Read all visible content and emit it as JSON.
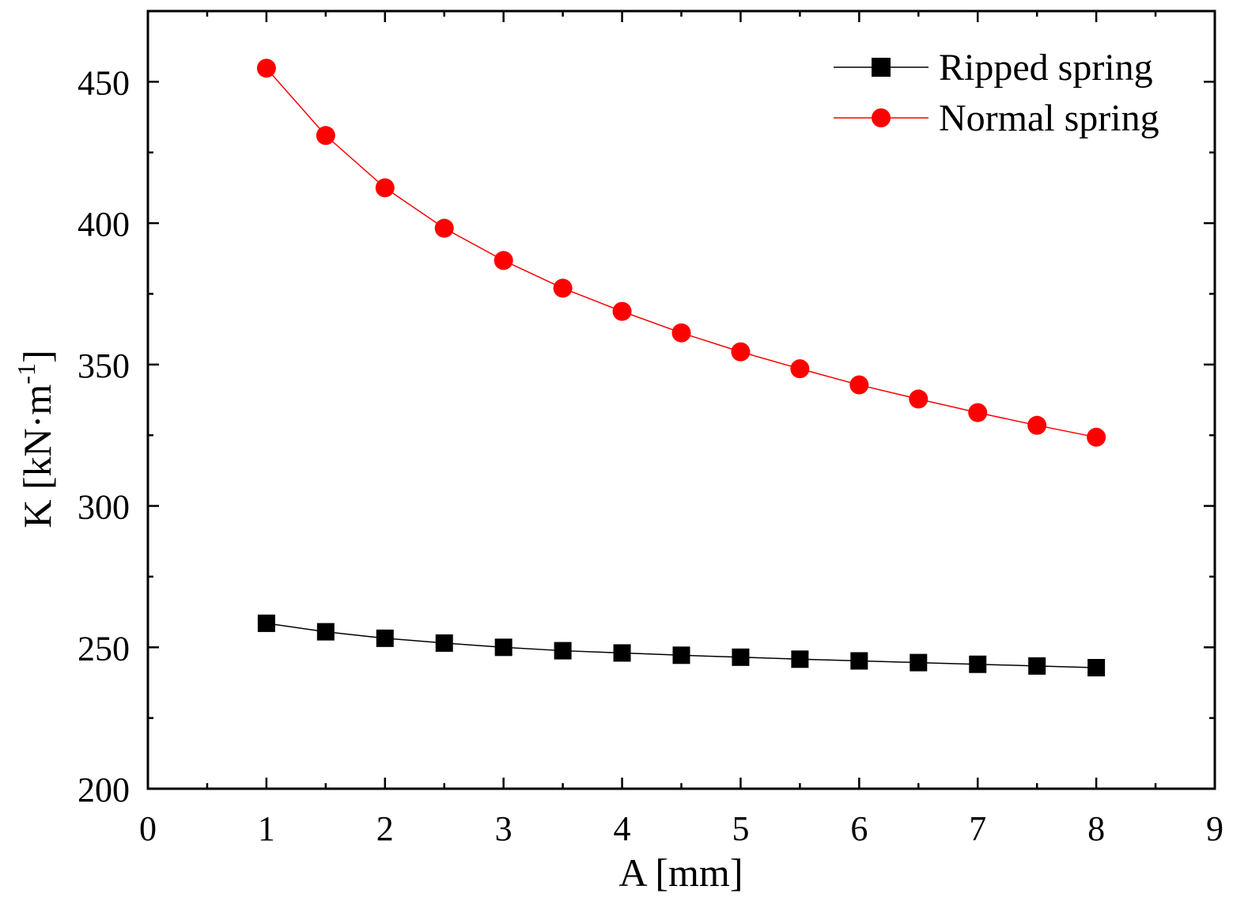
{
  "chart_data": {
    "type": "line",
    "title": "",
    "xlabel": "A [mm]",
    "ylabel_main": "K [kN·m",
    "ylabel_sup": "-1",
    "ylabel_close": "]",
    "xlim": [
      0,
      9
    ],
    "ylim": [
      200,
      475
    ],
    "xticks": [
      0,
      1,
      2,
      3,
      4,
      5,
      6,
      7,
      8,
      9
    ],
    "yticks": [
      200,
      250,
      300,
      350,
      400,
      450
    ],
    "xtick_labels": [
      "0",
      "1",
      "2",
      "3",
      "4",
      "5",
      "6",
      "7",
      "8",
      "9"
    ],
    "ytick_labels": [
      "200",
      "250",
      "300",
      "350",
      "400",
      "450"
    ],
    "x_minor_step": 0.5,
    "y_minor_step": 25,
    "grid": false,
    "legend_position": "top-right",
    "x": [
      1,
      1.5,
      2,
      2.5,
      3,
      3.5,
      4,
      4.5,
      5,
      5.5,
      6,
      6.5,
      7,
      7.5,
      8
    ],
    "series": [
      {
        "name": "Ripped spring",
        "marker": "square",
        "color": "#000000",
        "values": [
          258.5,
          255.5,
          253.2,
          251.5,
          250.0,
          248.8,
          248.0,
          247.2,
          246.5,
          245.8,
          245.2,
          244.6,
          244.0,
          243.4,
          242.8
        ]
      },
      {
        "name": "Normal spring",
        "marker": "circle",
        "color": "#ff0000",
        "values": [
          454.8,
          431.0,
          412.5,
          398.2,
          386.8,
          377.0,
          368.8,
          361.2,
          354.5,
          348.5,
          342.8,
          337.8,
          333.0,
          328.5,
          324.3
        ]
      }
    ]
  }
}
